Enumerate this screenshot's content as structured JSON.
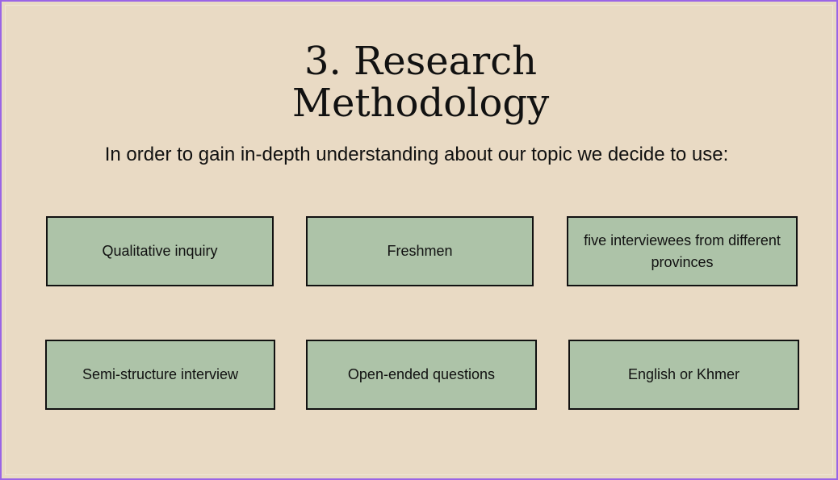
{
  "slide": {
    "title_line1": "3.  Research",
    "title_line2": "Methodology",
    "subtitle": "In order to gain in-depth understanding about our topic we decide to use:",
    "boxes": [
      "Qualitative inquiry",
      "Freshmen",
      "five interviewees from different provinces",
      "Semi-structure interview",
      "Open-ended questions",
      "English or Khmer"
    ]
  },
  "colors": {
    "background": "#e9dac4",
    "box_fill": "#adc3a8",
    "frame_border": "#9a64e6"
  }
}
